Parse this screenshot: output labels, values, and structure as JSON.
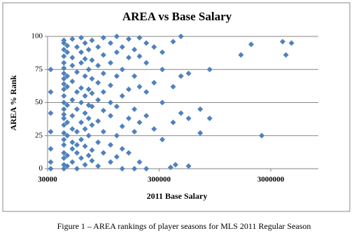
{
  "chart_data": {
    "type": "scatter",
    "title": "AREA vs Base Salary",
    "x_label": "2011 Base Salary",
    "y_label": "AREA % Rank",
    "x": [
      32000,
      32000,
      32000,
      32000,
      32000,
      32000,
      32000,
      42000,
      42000,
      42000,
      42000,
      42000,
      42000,
      42000,
      42000,
      42000,
      42000,
      42000,
      42000,
      42000,
      42000,
      42000,
      42000,
      42000,
      42000,
      42000,
      42000,
      42000,
      42000,
      42000,
      45000,
      45000,
      45000,
      45000,
      45000,
      45000,
      45000,
      45000,
      45000,
      50000,
      50000,
      50000,
      50000,
      50000,
      50000,
      50000,
      50000,
      50000,
      50000,
      55000,
      55000,
      55000,
      55000,
      55000,
      55000,
      55000,
      55000,
      60000,
      60000,
      60000,
      60000,
      60000,
      60000,
      60000,
      60000,
      65000,
      65000,
      65000,
      65000,
      65000,
      65000,
      65000,
      65000,
      70000,
      70000,
      70000,
      70000,
      70000,
      70000,
      70000,
      75000,
      75000,
      75000,
      75000,
      75000,
      75000,
      75000,
      75000,
      85000,
      85000,
      85000,
      85000,
      85000,
      85000,
      85000,
      95000,
      95000,
      95000,
      95000,
      95000,
      95000,
      95000,
      110000,
      110000,
      110000,
      110000,
      110000,
      110000,
      110000,
      125000,
      125000,
      125000,
      125000,
      125000,
      125000,
      140000,
      140000,
      140000,
      140000,
      140000,
      140000,
      160000,
      160000,
      160000,
      160000,
      160000,
      180000,
      180000,
      180000,
      180000,
      180000,
      200000,
      200000,
      200000,
      200000,
      200000,
      230000,
      230000,
      230000,
      230000,
      230000,
      270000,
      270000,
      270000,
      320000,
      320000,
      320000,
      320000,
      400000,
      400000,
      400000,
      470000,
      470000,
      470000,
      550000,
      550000,
      550000,
      700000,
      700000,
      850000,
      850000,
      1620000,
      2000000,
      2490000,
      3830000,
      4100000,
      4600000,
      380000,
      420000
    ],
    "values": [
      5,
      15,
      28,
      42,
      58,
      75,
      0,
      0,
      3,
      8,
      12,
      18,
      22,
      27,
      33,
      38,
      41,
      45,
      50,
      55,
      60,
      64,
      68,
      72,
      76,
      80,
      85,
      90,
      95,
      97,
      2,
      10,
      25,
      35,
      48,
      62,
      70,
      88,
      93,
      5,
      15,
      20,
      30,
      40,
      52,
      66,
      78,
      84,
      98,
      0,
      12,
      18,
      28,
      45,
      58,
      73,
      92,
      8,
      22,
      35,
      50,
      61,
      80,
      88,
      99,
      3,
      17,
      30,
      42,
      55,
      70,
      83,
      95,
      10,
      25,
      38,
      48,
      60,
      75,
      90,
      6,
      14,
      33,
      47,
      57,
      68,
      82,
      97,
      2,
      20,
      36,
      52,
      65,
      78,
      92,
      12,
      28,
      44,
      58,
      72,
      86,
      99,
      5,
      18,
      40,
      50,
      63,
      80,
      95,
      9,
      25,
      47,
      70,
      88,
      100,
      0,
      15,
      32,
      55,
      75,
      92,
      12,
      38,
      60,
      84,
      98,
      0,
      28,
      45,
      70,
      90,
      5,
      35,
      62,
      85,
      99,
      0,
      40,
      58,
      80,
      95,
      30,
      65,
      92,
      22,
      50,
      75,
      88,
      35,
      62,
      96,
      42,
      70,
      100,
      2,
      38,
      72,
      27,
      45,
      38,
      75,
      86,
      94,
      25,
      96,
      86,
      95,
      1,
      3
    ],
    "color": "#4f81bd",
    "x_log": true,
    "xlim": [
      30000,
      8000000
    ],
    "ylim": [
      0,
      100
    ],
    "xticks": [
      30000,
      300000,
      3000000
    ],
    "yticks": [
      0,
      25,
      50,
      75,
      100
    ],
    "grid": true
  },
  "caption": "Figure 1 – AREA rankings of player seasons for MLS 2011 Regular Season"
}
